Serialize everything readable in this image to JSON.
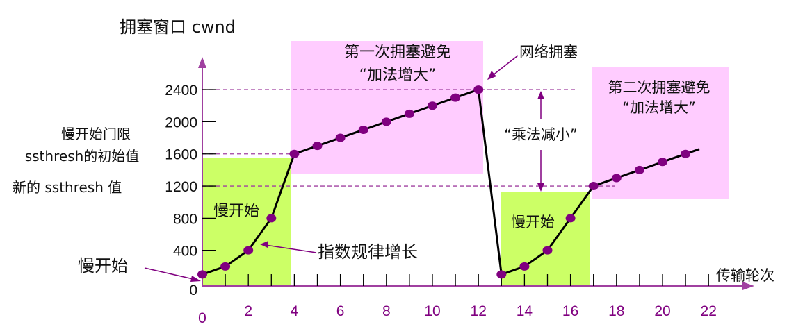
{
  "chart_data": {
    "type": "line",
    "title": "",
    "xlabel": "传输轮次",
    "ylabel": "拥塞窗口 cwnd",
    "x": [
      0,
      1,
      2,
      3,
      4,
      5,
      6,
      7,
      8,
      9,
      10,
      11,
      12,
      13,
      14,
      15,
      16,
      17,
      18,
      19,
      20,
      21
    ],
    "series": [
      {
        "name": "cwnd",
        "values": [
          100,
          200,
          400,
          800,
          1600,
          1700,
          1800,
          1900,
          2000,
          2100,
          2200,
          2300,
          2400,
          100,
          200,
          400,
          800,
          1200,
          1300,
          1400,
          1500,
          1600
        ]
      }
    ],
    "x_ticks": [
      "0",
      "2",
      "4",
      "6",
      "8",
      "10",
      "12",
      "14",
      "16",
      "18",
      "20",
      "22"
    ],
    "y_ticks": [
      "0",
      "400",
      "800",
      "1200",
      "1600",
      "2000",
      "2400"
    ],
    "ylim": [
      0,
      2400
    ],
    "xlim": [
      0,
      22
    ],
    "grid": false,
    "regions": [
      {
        "label": "慢开始",
        "x": [
          0,
          4
        ],
        "y": [
          0,
          1600
        ],
        "color": "#ccff66"
      },
      {
        "label": "第一次拥塞避免 “加法增大”",
        "x": [
          4,
          12
        ],
        "y": [
          1400,
          2700
        ],
        "color": "#ffccff"
      },
      {
        "label": "慢开始",
        "x": [
          13,
          17
        ],
        "y": [
          0,
          1200
        ],
        "color": "#ccff66"
      },
      {
        "label": "第二次拥塞避免 “加法增大”",
        "x": [
          17,
          23
        ],
        "y": [
          1100,
          2700
        ],
        "color": "#ffccff"
      }
    ],
    "reference_lines": [
      {
        "y": 2400,
        "style": "dashed"
      },
      {
        "y": 1600,
        "style": "dashed"
      },
      {
        "y": 1200,
        "style": "dashed"
      }
    ]
  },
  "labels": {
    "y_axis_title": "拥塞窗口 cwnd",
    "x_axis_title": "传输轮次",
    "ssthresh_initial_line1": "慢开始门限",
    "ssthresh_initial_line2": "ssthresh的初始值",
    "ssthresh_new": "新的 ssthresh 值",
    "slow_start_outer": "慢开始",
    "slow_start_1": "慢开始",
    "slow_start_2": "慢开始",
    "exponential": "指数规律增长",
    "ca1_line1": "第一次拥塞避免",
    "ca1_line2": "“加法增大”",
    "ca2_line1": "第二次拥塞避免",
    "ca2_line2": "“加法增大”",
    "congestion": "网络拥塞",
    "mult_decrease": "“乘法减小”"
  },
  "colors": {
    "axis": "#a040a0",
    "slow_start_bg": "#ccff66",
    "avoidance_bg": "#ffccff",
    "point": "#800080",
    "line": "#000000"
  }
}
